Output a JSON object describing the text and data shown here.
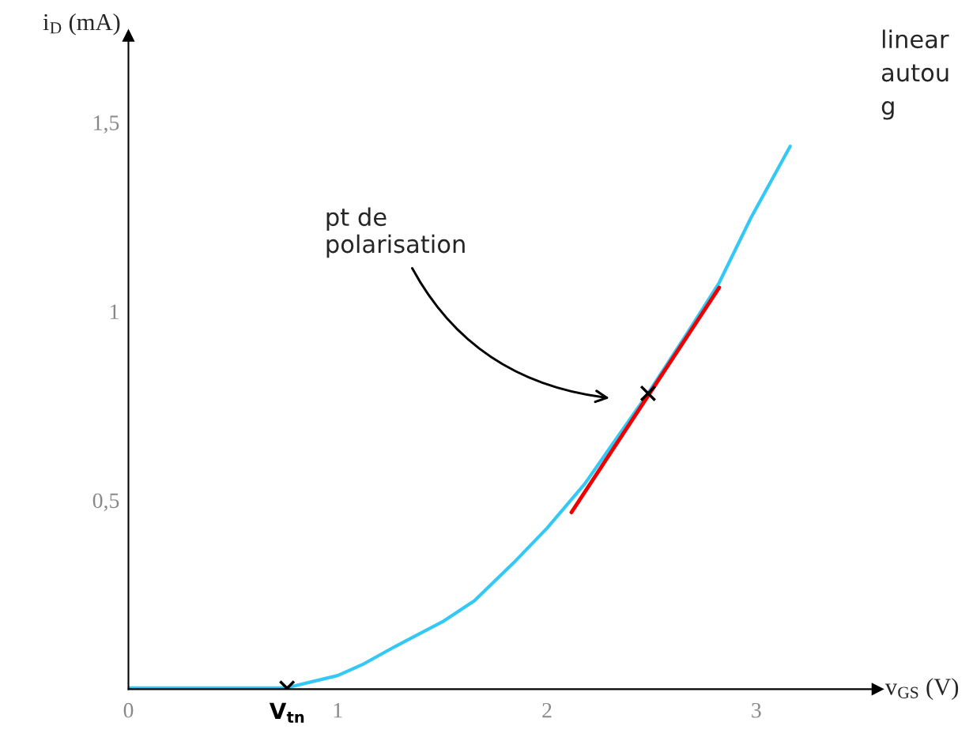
{
  "chart_data": {
    "type": "line",
    "xlabel": "v$_{GS}$ (V)",
    "ylabel": "i$_{D}$ (mA)",
    "xlim": [
      0,
      3.58
    ],
    "ylim": [
      0,
      1.73
    ],
    "xticks": [
      0,
      {
        "value": 0.76,
        "label": "V$_{tn}$"
      },
      1,
      2,
      3
    ],
    "yticks": [
      {
        "value": 0,
        "label": null
      },
      {
        "value": 0.5,
        "label": "0,5"
      },
      1,
      {
        "value": 1.5,
        "label": "1,5"
      }
    ],
    "grid": false,
    "legend": false,
    "series": [
      {
        "color": "#33c8f5",
        "x": [
          0,
          0.75,
          1.0,
          1.125,
          1.275,
          1.5,
          1.653,
          1.84,
          2.0,
          2.18,
          2.483,
          2.672,
          2.823,
          2.974,
          3.162
        ],
        "values": [
          0.003,
          0.003,
          0.036,
          0.067,
          0.113,
          0.178,
          0.234,
          0.334,
          0.426,
          0.543,
          0.783,
          0.944,
          1.076,
          1.247,
          1.437
        ]
      },
      {
        "type": "line",
        "color": "#ee0000",
        "x": [
          2.117,
          2.823
        ],
        "values": [
          0.468,
          1.063
        ]
      },
      {
        "type": "scatter",
        "color": "#000000",
        "marker": "cross",
        "x": [
          0.758,
          2.483
        ],
        "values": [
          0.002,
          0.783
        ]
      }
    ],
    "annotations": [
      "pt de\npolarisation",
      "linear",
      "autou",
      "g"
    ]
  }
}
